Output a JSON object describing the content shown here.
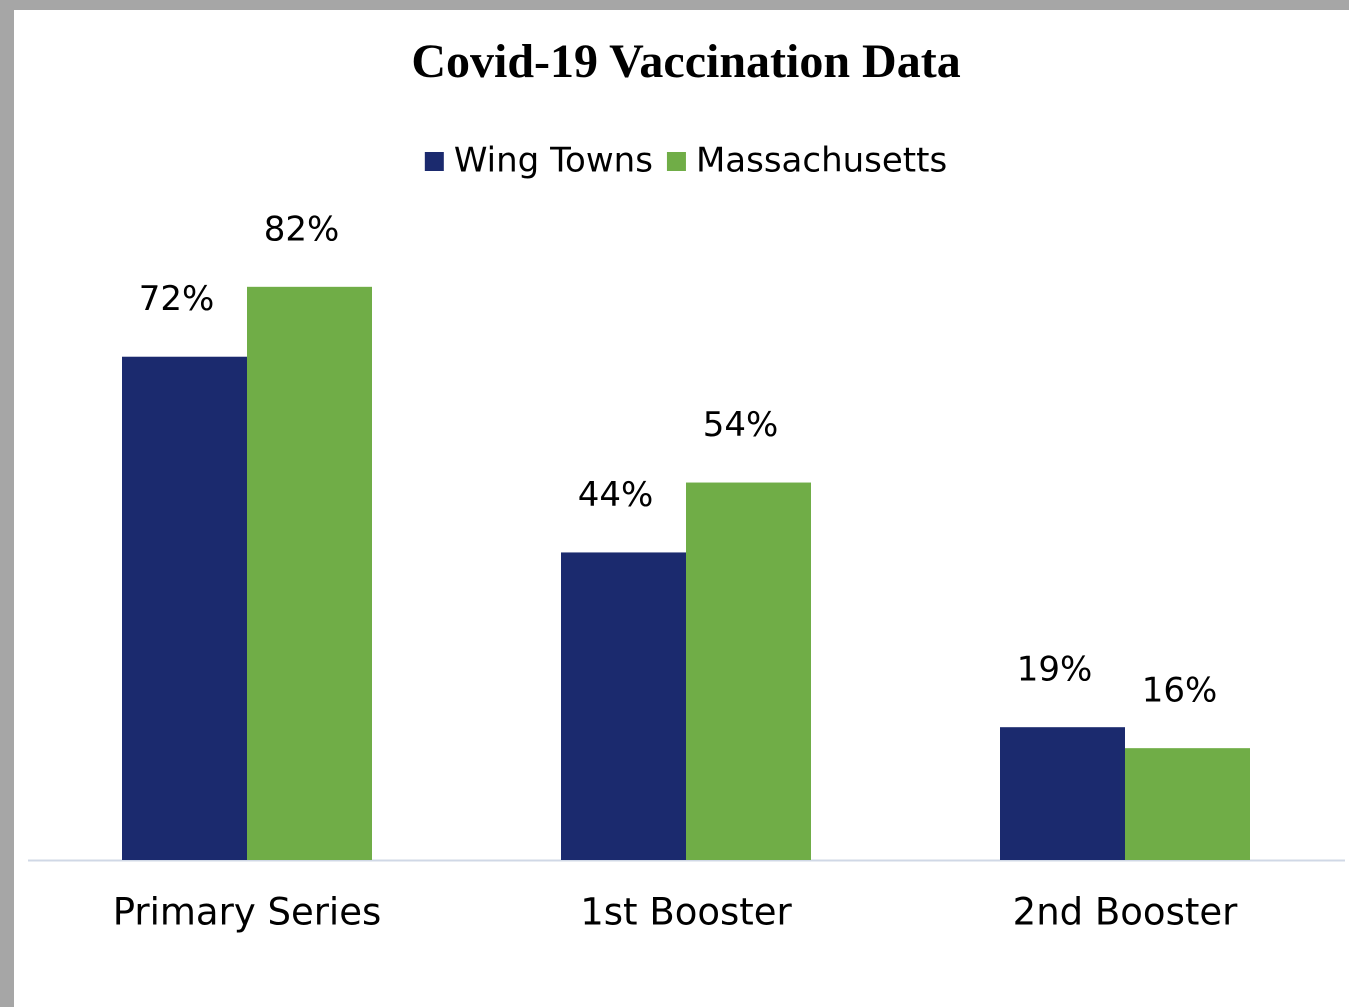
{
  "chart_data": {
    "type": "bar",
    "title": "Covid-19 Vaccination Data",
    "categories": [
      "Primary Series",
      "1st Booster",
      "2nd Booster"
    ],
    "series": [
      {
        "name": "Wing Towns",
        "color": "#1b2a6e",
        "values": [
          72,
          44,
          19
        ],
        "value_labels": [
          "72%",
          "44%",
          "19%"
        ]
      },
      {
        "name": "Massachusetts",
        "color": "#70ad47",
        "values": [
          82,
          54,
          16
        ],
        "value_labels": [
          "82%",
          "54%",
          "16%"
        ]
      }
    ],
    "ylim": [
      0,
      100
    ],
    "legend": "top"
  }
}
